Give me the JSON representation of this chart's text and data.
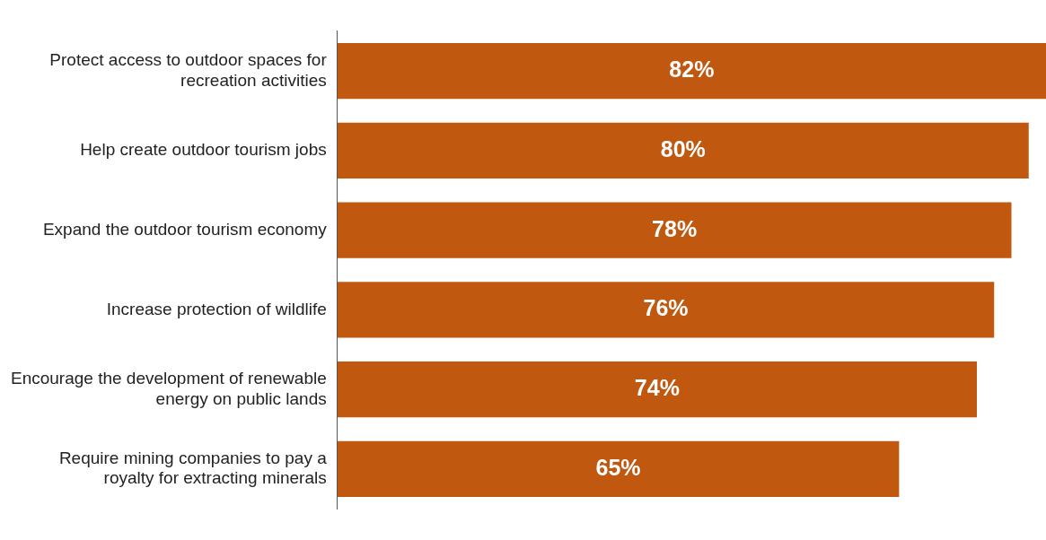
{
  "chart_data": {
    "type": "bar",
    "orientation": "horizontal",
    "categories": [
      "Protect access to outdoor spaces for recreation activities",
      "Help create outdoor tourism jobs",
      "Expand the outdoor tourism economy",
      "Increase protection of wildlife",
      "Encourage the development of renewable energy on public lands",
      "Require mining companies to pay a royalty for extracting minerals"
    ],
    "values": [
      82,
      80,
      78,
      76,
      74,
      65
    ],
    "value_labels": [
      "82%",
      "80%",
      "78%",
      "76%",
      "74%",
      "65%"
    ],
    "color": "#c0580f",
    "xlim": [
      0,
      82
    ],
    "tick_labels": "y",
    "grid": false,
    "legend": false
  }
}
